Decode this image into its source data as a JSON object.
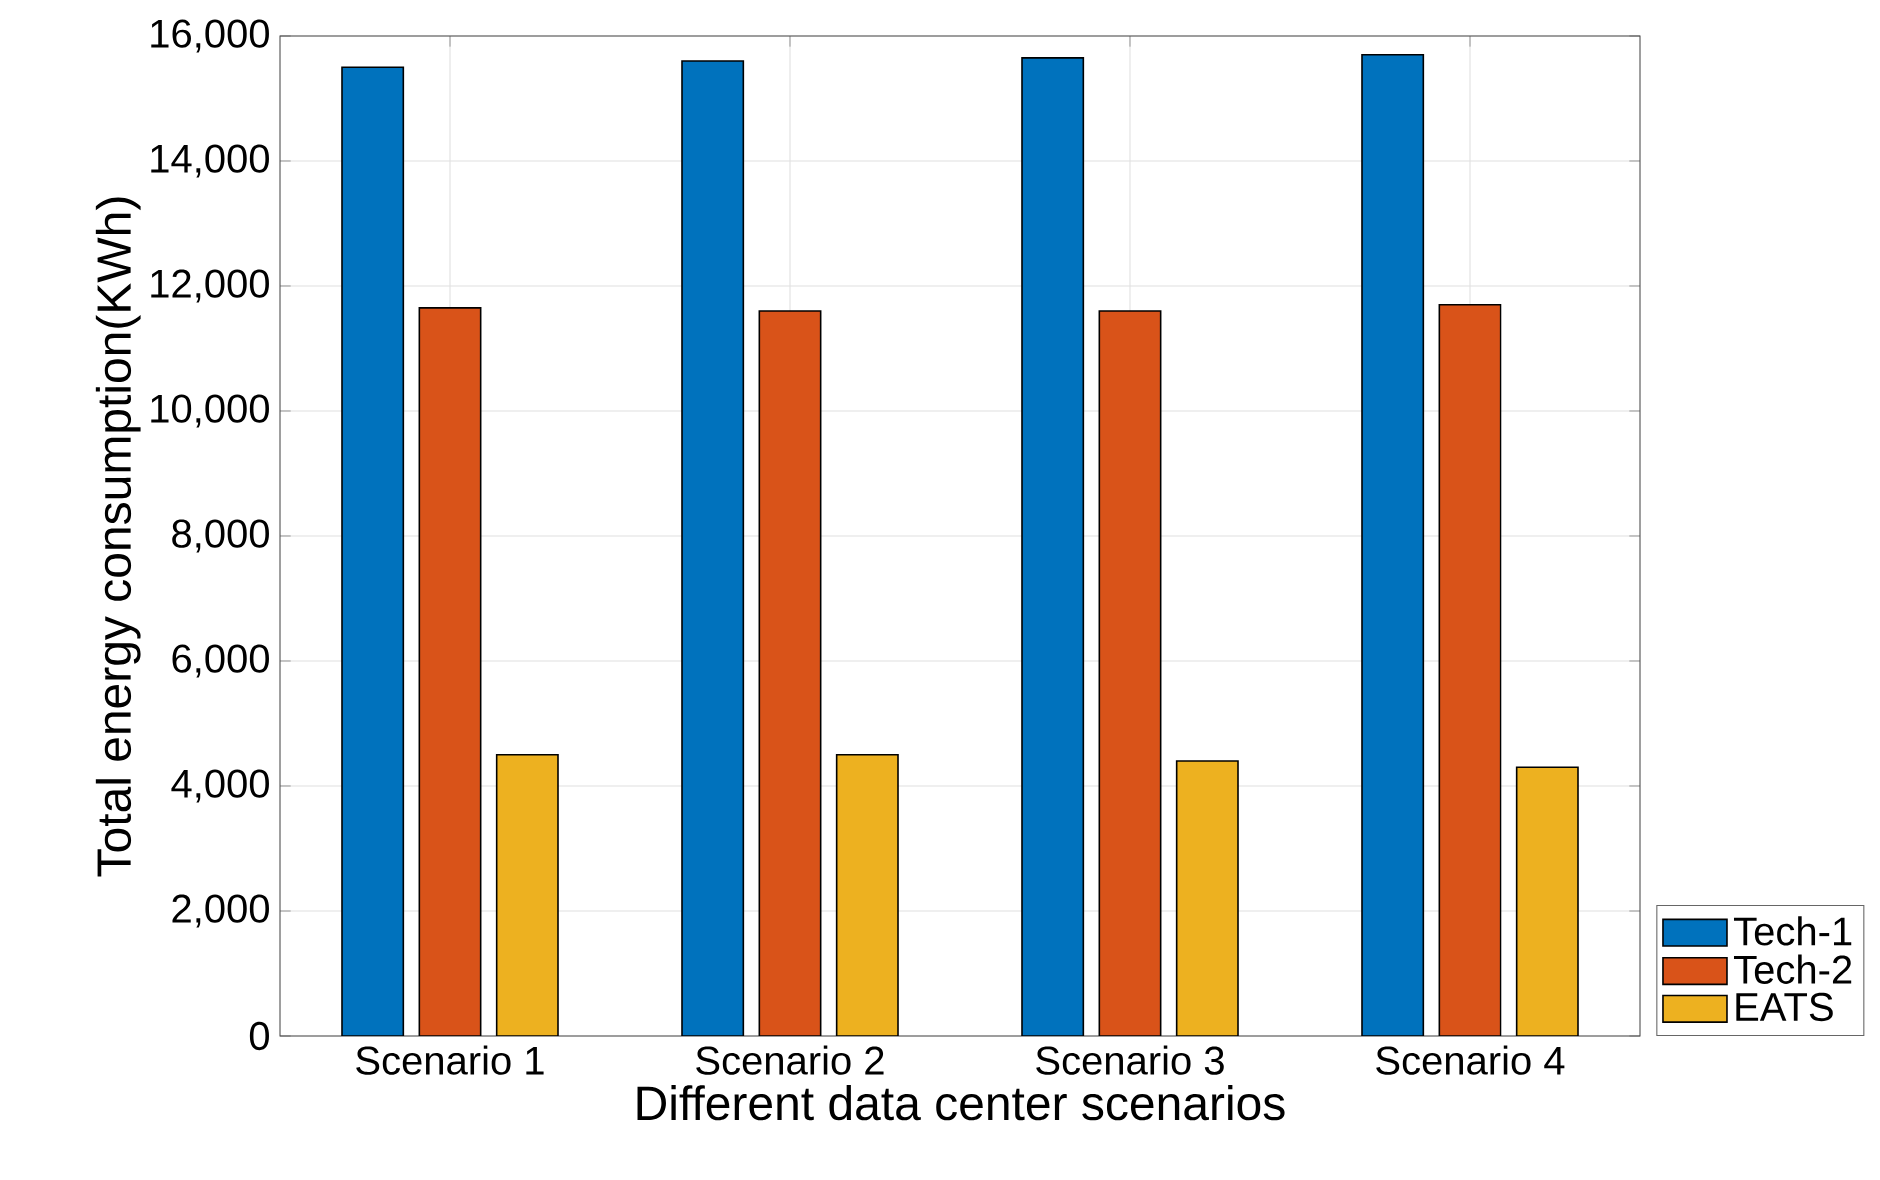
{
  "chart_data": {
    "type": "bar",
    "xlabel": "Different data center scenarios",
    "ylabel": "Total energy consumption(KWh)",
    "categories": [
      "Scenario 1",
      "Scenario 2",
      "Scenario 3",
      "Scenario 4"
    ],
    "series": [
      {
        "name": "Tech-1",
        "color": "#0072bd",
        "values": [
          15500,
          15600,
          15650,
          15700
        ]
      },
      {
        "name": "Tech-2",
        "color": "#d95319",
        "values": [
          11650,
          11600,
          11600,
          11700
        ]
      },
      {
        "name": "EATS",
        "color": "#edb120",
        "values": [
          4500,
          4500,
          4400,
          4300
        ]
      }
    ],
    "ylim": [
      0,
      16000
    ],
    "yticks": [
      0,
      {
        "value": 2000,
        "label": "2,000"
      },
      {
        "value": 4000,
        "label": "4,000"
      },
      {
        "value": 6000,
        "label": "6,000"
      },
      {
        "value": 8000,
        "label": "8,000"
      },
      {
        "value": 10000,
        "label": "10,000"
      },
      {
        "value": 12000,
        "label": "12,000"
      },
      {
        "value": 14000,
        "label": "14,000"
      },
      {
        "value": 16000,
        "label": "16,000"
      }
    ],
    "grid": true,
    "legend": "bottom right"
  }
}
